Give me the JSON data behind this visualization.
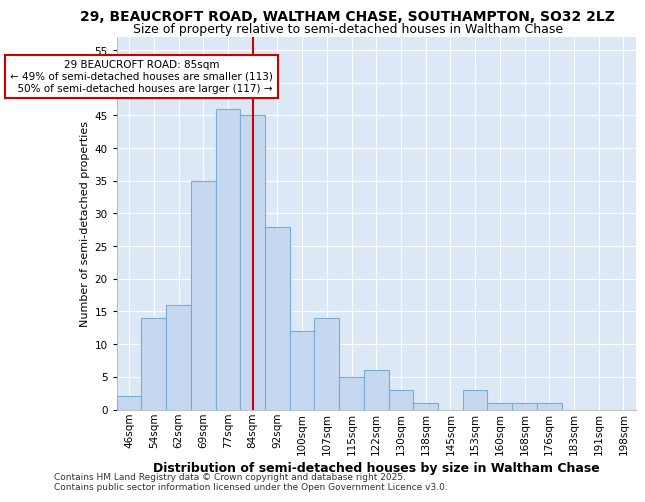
{
  "title_line1": "29, BEAUCROFT ROAD, WALTHAM CHASE, SOUTHAMPTON, SO32 2LZ",
  "title_line2": "Size of property relative to semi-detached houses in Waltham Chase",
  "xlabel": "Distribution of semi-detached houses by size in Waltham Chase",
  "ylabel": "Number of semi-detached properties",
  "footnote": "Contains HM Land Registry data © Crown copyright and database right 2025.\nContains public sector information licensed under the Open Government Licence v3.0.",
  "bin_labels": [
    "46sqm",
    "54sqm",
    "62sqm",
    "69sqm",
    "77sqm",
    "84sqm",
    "92sqm",
    "100sqm",
    "107sqm",
    "115sqm",
    "122sqm",
    "130sqm",
    "138sqm",
    "145sqm",
    "153sqm",
    "160sqm",
    "168sqm",
    "176sqm",
    "183sqm",
    "191sqm",
    "198sqm"
  ],
  "bar_values": [
    2,
    14,
    16,
    35,
    46,
    45,
    28,
    12,
    14,
    5,
    6,
    3,
    1,
    0,
    3,
    1,
    1,
    1,
    0,
    0,
    0
  ],
  "bar_color": "#c5d8f0",
  "bar_edge_color": "#7aadd4",
  "vline_color": "#cc0000",
  "vline_x_bin_index": 5,
  "annotation_box_color": "#cc0000",
  "property_label": "29 BEAUCROFT ROAD: 85sqm",
  "pct_smaller": 49,
  "n_smaller": 113,
  "pct_larger": 50,
  "n_larger": 117,
  "ylim": [
    0,
    57
  ],
  "yticks": [
    0,
    5,
    10,
    15,
    20,
    25,
    30,
    35,
    40,
    45,
    50,
    55
  ],
  "background_color": "#ffffff",
  "axes_background": "#dce8f5",
  "grid_color": "#ffffff",
  "title1_fontsize": 10,
  "title2_fontsize": 9,
  "ylabel_fontsize": 8,
  "xlabel_fontsize": 9,
  "tick_fontsize": 7.5,
  "footnote_fontsize": 6.5
}
